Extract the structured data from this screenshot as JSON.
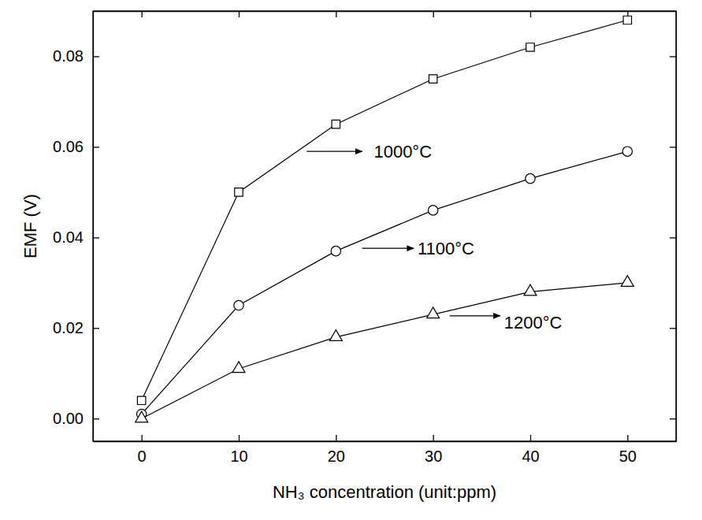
{
  "chart_data": {
    "type": "line",
    "x_label": "NH₃ concentration (unit:ppm)",
    "y_label": "EMF (V)",
    "x": [
      0,
      10,
      20,
      30,
      40,
      50
    ],
    "series": [
      {
        "color": "#000000",
        "marker": "square",
        "line_style": "solid",
        "values": [
          0.004,
          0.05,
          0.065,
          0.075,
          0.082,
          0.088
        ]
      },
      {
        "color": "#000000",
        "marker": "circle",
        "line_style": "solid",
        "values": [
          0.001,
          0.025,
          0.037,
          0.046,
          0.053,
          0.059
        ]
      },
      {
        "color": "#000000",
        "marker": "triangle",
        "line_style": "solid",
        "values": [
          0.0,
          0.011,
          0.018,
          0.023,
          0.028,
          0.03
        ]
      }
    ],
    "xlim": [
      -5,
      55
    ],
    "ylim": [
      -0.005,
      0.09
    ],
    "xticks": [
      0,
      10,
      20,
      30,
      40,
      50
    ],
    "yticks": [
      {
        "value": 0,
        "label": "0.00"
      },
      {
        "value": 0.02,
        "label": "0.02"
      },
      {
        "value": 0.04,
        "label": "0.04"
      },
      {
        "value": 0.06,
        "label": "0.06"
      },
      {
        "value": 0.08,
        "label": "0.08"
      }
    ],
    "grid": false,
    "annotations": [
      {
        "text": "1000°C",
        "x": 23.9,
        "y": 0.059,
        "arrow_x": [
          17.0,
          22.7
        ],
        "arrow_y": 0.059
      },
      {
        "text": "1100°C",
        "x": 28.4,
        "y": 0.0376,
        "arrow_x": [
          22.7,
          28.0
        ],
        "arrow_y": 0.0376
      },
      {
        "text": "1200°C",
        "x": 37.3,
        "y": 0.0212,
        "arrow_x": [
          31.7,
          36.9
        ],
        "arrow_y": 0.0227
      }
    ]
  }
}
